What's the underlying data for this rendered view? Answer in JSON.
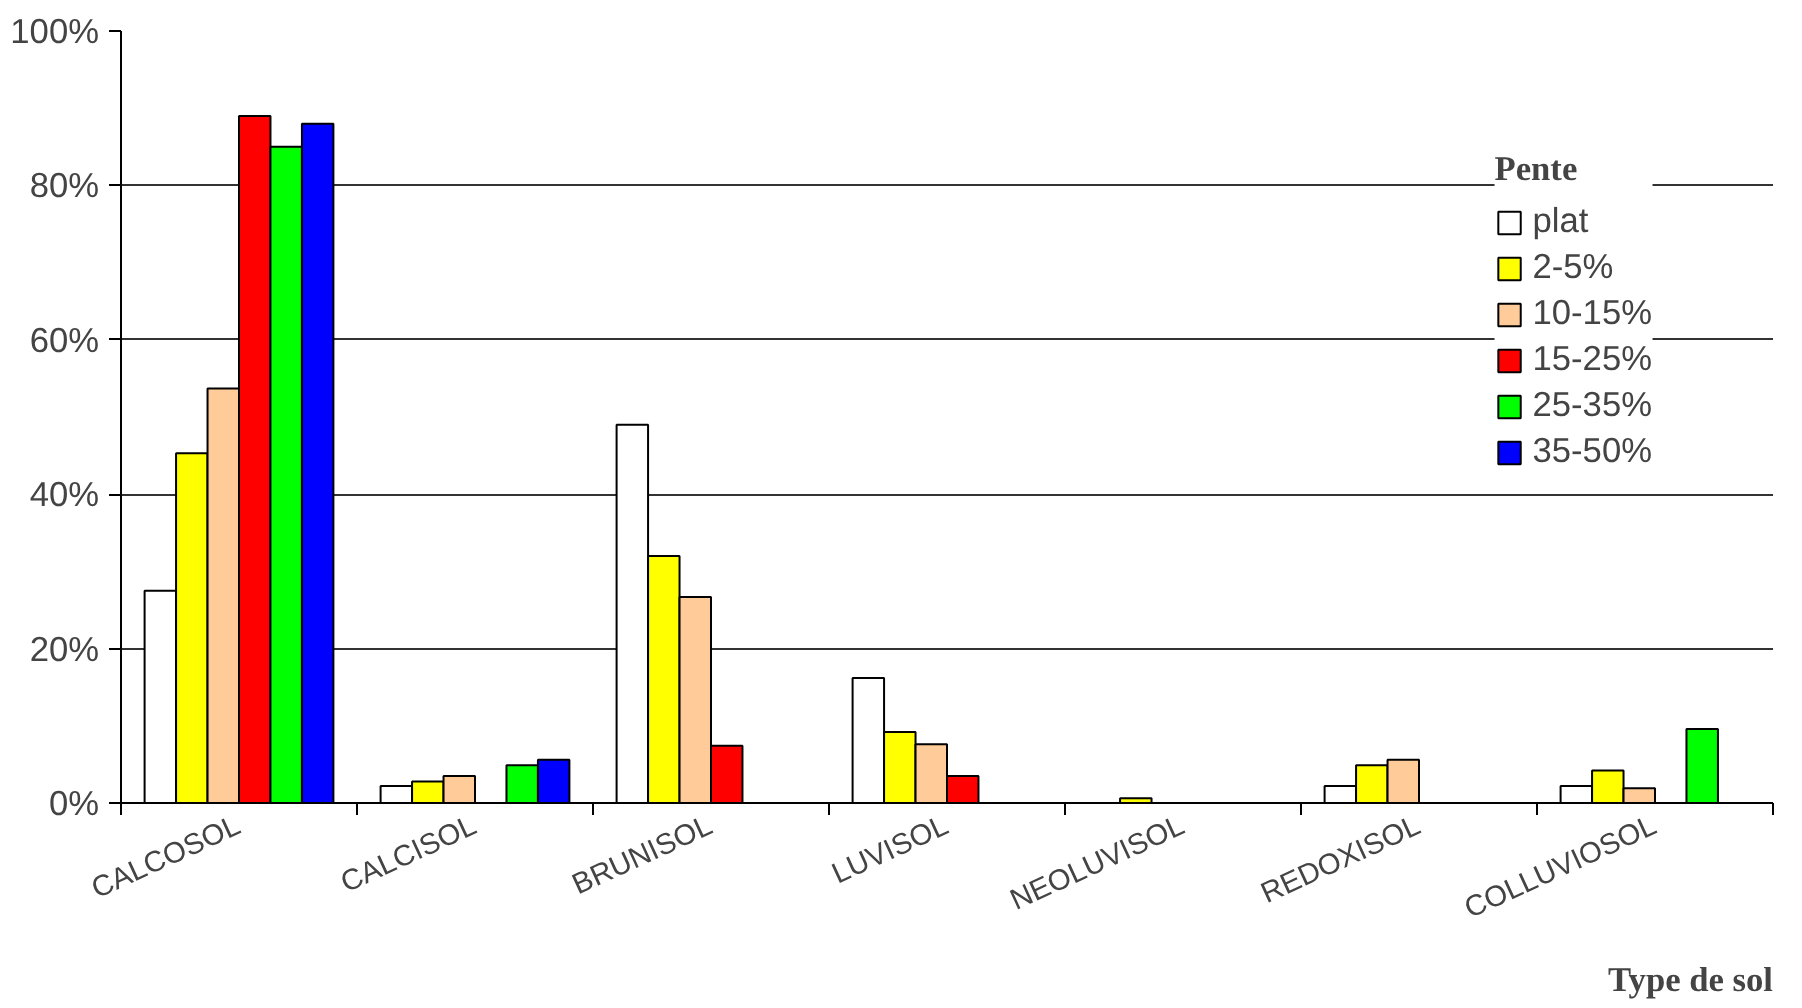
{
  "chart_data": {
    "type": "bar",
    "xlabel": "Type de sol",
    "legend_title": "Pente",
    "legend": "top right",
    "grid": "y",
    "categories": [
      "CALCOSOL",
      "CALCISOL",
      "BRUNISOL",
      "LUVISOL",
      "NEOLUVISOL",
      "REDOXISOL",
      "COLLUVIOSOL"
    ],
    "series": [
      {
        "name": "plat",
        "color": "#ffffff",
        "values": [
          27.5,
          2.2,
          49,
          16.2,
          null,
          2.2,
          2.2
        ]
      },
      {
        "name": "2-5%",
        "color": "#ffff00",
        "values": [
          45.3,
          2.8,
          32,
          9.2,
          0.6,
          4.9,
          4.2
        ]
      },
      {
        "name": "10-15%",
        "color": "#ffcc99",
        "values": [
          53.7,
          3.5,
          26.7,
          7.6,
          null,
          5.6,
          1.9
        ]
      },
      {
        "name": "15-25%",
        "color": "#ff0000",
        "values": [
          89,
          null,
          7.4,
          3.5,
          null,
          null,
          null
        ]
      },
      {
        "name": "25-35%",
        "color": "#00ff00",
        "values": [
          85,
          4.9,
          null,
          null,
          null,
          null,
          9.6
        ]
      },
      {
        "name": "35-50%",
        "color": "#0000ff",
        "values": [
          88,
          5.6,
          null,
          null,
          null,
          null,
          null
        ]
      }
    ],
    "ylim": [
      0,
      100
    ],
    "yticks": [
      {
        "value": 0,
        "label": "0%"
      },
      {
        "value": 20,
        "label": "20%"
      },
      {
        "value": 40,
        "label": "40%"
      },
      {
        "value": 60,
        "label": "60%"
      },
      {
        "value": 80,
        "label": "80%"
      },
      {
        "value": 100,
        "label": "100%"
      }
    ]
  }
}
